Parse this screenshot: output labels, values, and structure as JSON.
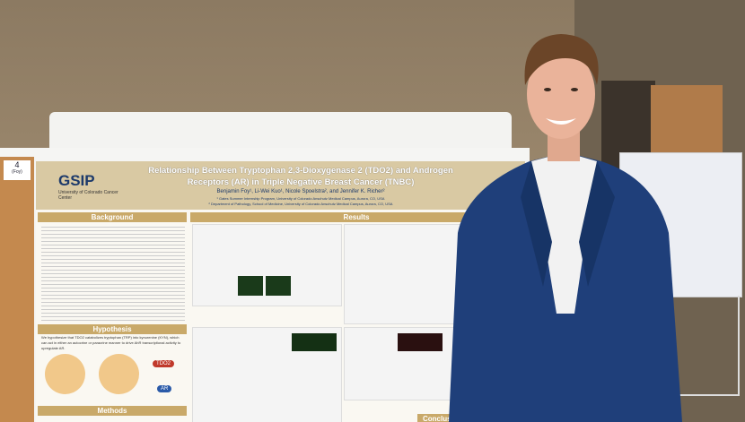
{
  "board_tag": {
    "number": "4",
    "name": "(Foy)"
  },
  "poster": {
    "logo": {
      "mark": "GSIP",
      "org": "University of Colorado Cancer Center"
    },
    "title": "Relationship Between Tryptophan 2,3-Dioxygenase 2 (TDO2) and Androgen Receptors (AR) in Triple Negative Breast Cancer (TNBC)",
    "authors": "Benjamin Foy¹, Li-Wei Kuo¹, Nicole Spoelstra², and Jennifer K. Richer²",
    "affiliations": [
      "¹ Gates Summer Internship Program, University of Colorado Anschutz Medical Campus, Aurora, CO, USA",
      "² Department of Pathology, School of Medicine, University of Colorado Anschutz Medical Campus, Aurora, CO, USA"
    ],
    "sections": {
      "background": "Background",
      "hypothesis": "Hypothesis",
      "methods": "Methods",
      "results": "Results",
      "conclusions": "Conclusions"
    },
    "hypothesis_text": "We hypothesize that TDO2 catabolizes tryptophan (TRP) into kynurenine (KYN), which can act in either an autocrine or paracrine manner to drive AhR transcriptional activity to upregulate AR.",
    "diagram_labels": [
      "TDO2",
      "AR"
    ]
  }
}
